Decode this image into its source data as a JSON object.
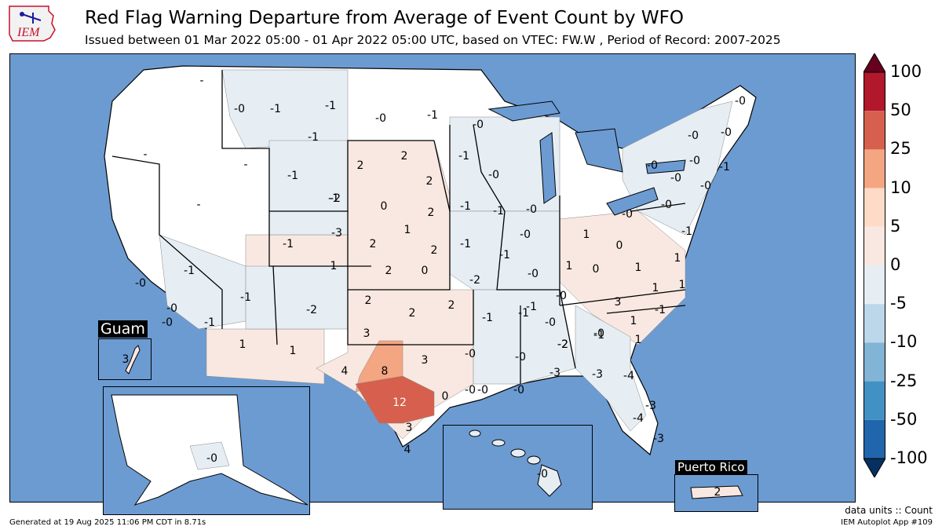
{
  "header": {
    "title": "Red Flag Warning Departure from Average of Event Count by WFO",
    "subtitle": "Issued between 01 Mar 2022 05:00 - 01 Apr 2022 05:00 UTC, based on VTEC: FW.W  , Period of Record: 2007-2025",
    "logo_text": "IEM"
  },
  "legend": {
    "ticks": [
      "100",
      "50",
      "25",
      "10",
      "5",
      "0",
      "-5",
      "-10",
      "-25",
      "-50",
      "-100"
    ],
    "colors": [
      "#67001f",
      "#b2182b",
      "#d6604d",
      "#f4a582",
      "#fddbc7",
      "#f9e8e1",
      "#e6eef4",
      "#bcd7ea",
      "#82b4d6",
      "#4291c4",
      "#2166ac",
      "#053061"
    ],
    "units_note": "data units :: Count"
  },
  "insets": {
    "guam": {
      "title": "Guam",
      "value": "3"
    },
    "puerto_rico": {
      "title": "Puerto Rico",
      "value": "2"
    },
    "alaska": {
      "value": "-0"
    },
    "hawaii": {
      "value": "-0"
    }
  },
  "wfo_values": [
    "-0",
    "-1",
    "-1",
    "-1",
    "-0",
    "-1",
    "-0",
    "-1",
    "-0",
    "-0",
    "-0",
    "-1",
    "2",
    "-1",
    "2",
    "-1",
    "-0",
    "-0",
    "-0",
    "-0",
    "-2",
    "2",
    "0",
    "-1",
    "-1",
    "-0",
    "-0",
    "-0",
    "-0",
    "-0",
    "-1",
    "1",
    "-1",
    "1",
    "-3",
    "-2",
    "2",
    "2",
    "-1",
    "-1",
    "1",
    "0",
    "1",
    "-1",
    "2",
    "2",
    "0",
    "-2",
    "-0",
    "1",
    "0",
    "1",
    "-0",
    "-0",
    "-1",
    "-1",
    "-2",
    "2",
    "2",
    "-1",
    "-0",
    "1",
    "3",
    "1",
    "2",
    "-1",
    "-1",
    "-1",
    "-0",
    "1",
    "1",
    "-0",
    "3",
    "3",
    "-0",
    "-2",
    "-0",
    "1",
    "1",
    "4",
    "8",
    "-0",
    "-0",
    "-3",
    "-3",
    "-4",
    "12",
    "0",
    "-0",
    "-3",
    "3",
    "-4",
    "4",
    "-3",
    "-0",
    "-1",
    "-",
    "-",
    "-",
    "-"
  ],
  "chart_data": {
    "type": "choropleth",
    "title": "Red Flag Warning Departure from Average of Event Count by WFO",
    "units": "Count",
    "bins": [
      -100,
      -50,
      -25,
      -10,
      -5,
      0,
      5,
      10,
      25,
      50,
      100
    ]
  },
  "footer": {
    "generated": "Generated at 19 Aug 2025 11:06 PM CDT in 8.71s",
    "app": "IEM Autoplot App #109"
  }
}
